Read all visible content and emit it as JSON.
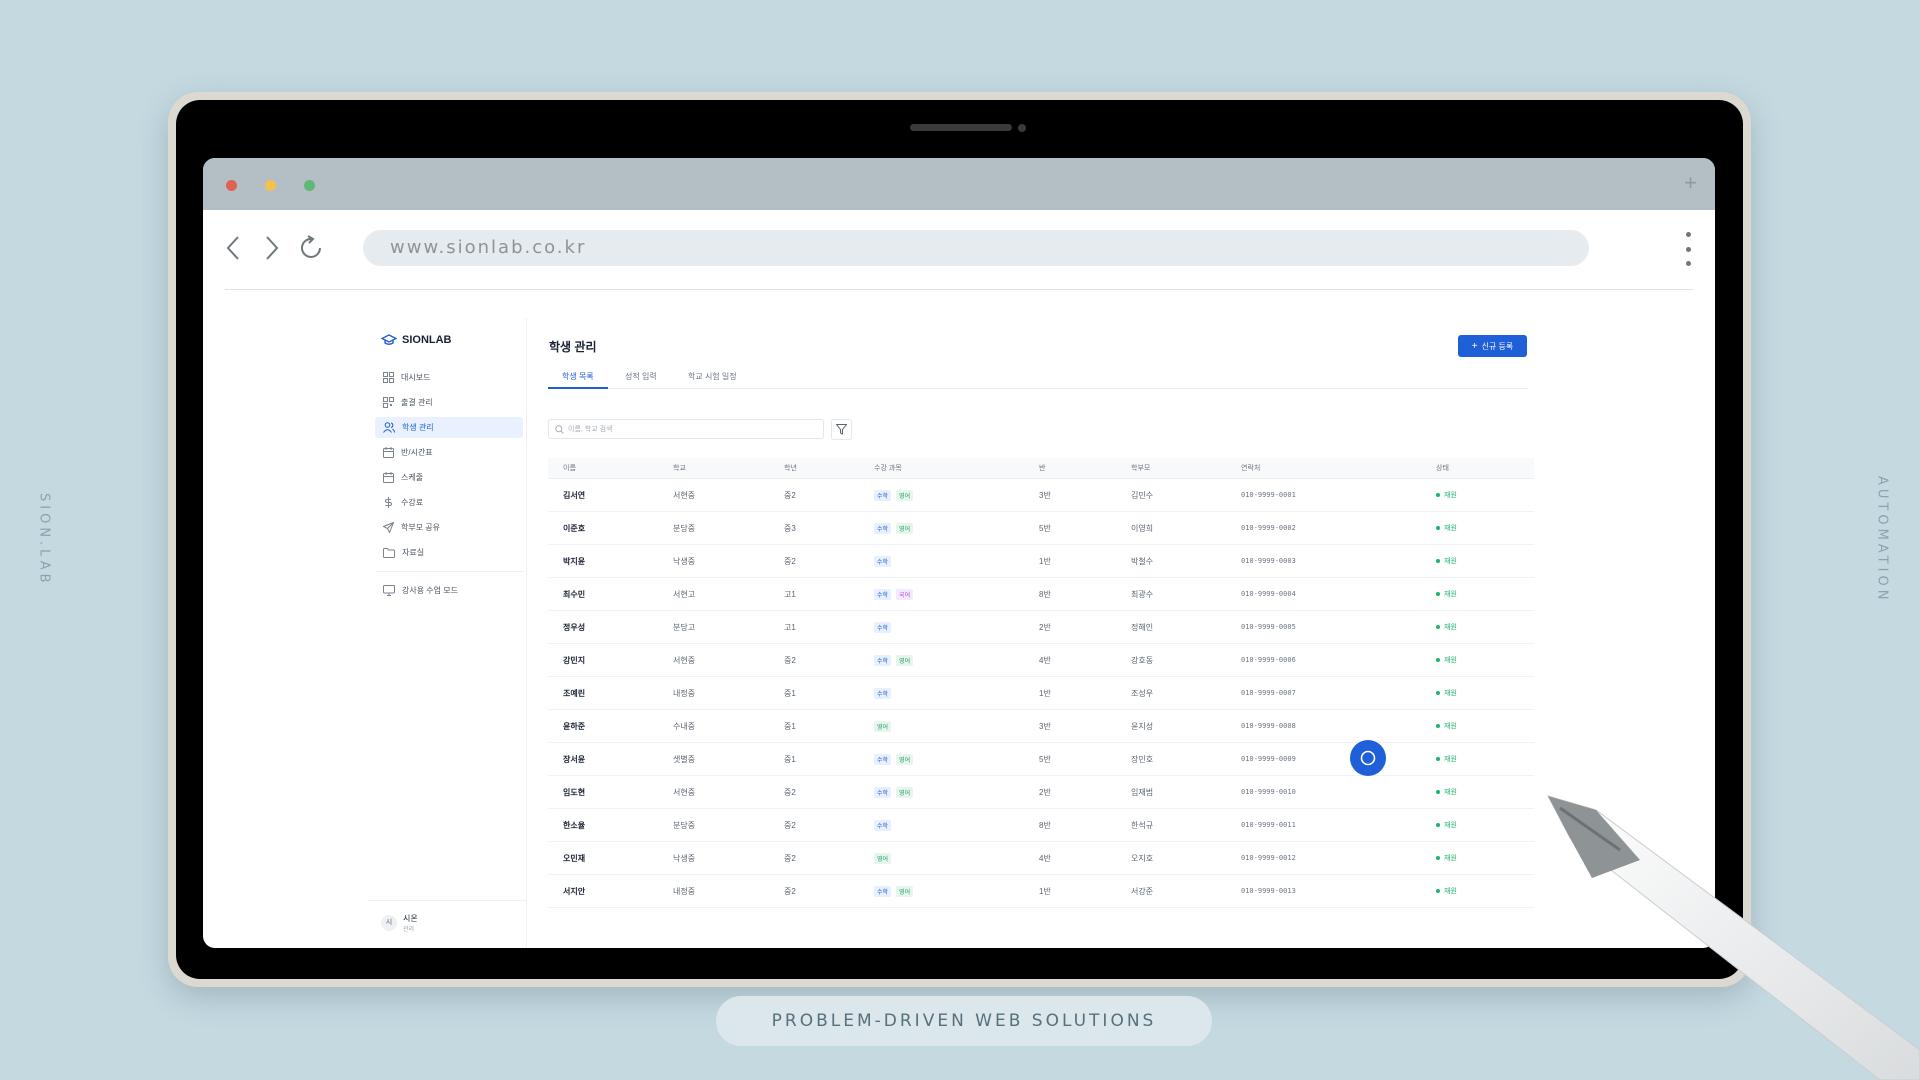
{
  "frame": {
    "left_text": "SION.LAB",
    "right_text": "AUTOMATION",
    "bottom_pill": "PROBLEM-DRIVEN WEB SOLUTIONS"
  },
  "browser": {
    "url": "www.sionlab.co.kr",
    "new_tab": "+"
  },
  "sidebar": {
    "brand": "SIONLAB",
    "items": [
      {
        "label": "대시보드",
        "icon": "dashboard-icon"
      },
      {
        "label": "출결 관리",
        "icon": "qr-icon"
      },
      {
        "label": "학생 관리",
        "icon": "users-icon"
      },
      {
        "label": "반/시간표",
        "icon": "calendar-icon"
      },
      {
        "label": "스케줄",
        "icon": "schedule-icon"
      },
      {
        "label": "수강료",
        "icon": "dollar-icon"
      },
      {
        "label": "학부모 공유",
        "icon": "send-icon"
      },
      {
        "label": "자료실",
        "icon": "folder-icon"
      }
    ],
    "extra": {
      "label": "강사용 수업 모드",
      "icon": "monitor-icon"
    },
    "user": {
      "initial": "시",
      "name": "시온",
      "role": "관리"
    }
  },
  "main": {
    "title": "학생 관리",
    "new_button": "신규 등록",
    "tabs": [
      "학생 목록",
      "성적 입력",
      "학교 시험 일정"
    ],
    "search_placeholder": "이름, 학교 검색",
    "columns": [
      "이름",
      "학교",
      "학년",
      "수강 과목",
      "반",
      "학부모",
      "연락처",
      "상태"
    ],
    "rows": [
      {
        "name": "김서연",
        "school": "서현중",
        "grade": "중2",
        "subjects": [
          "수학",
          "영어"
        ],
        "class": "3반",
        "parent": "김민수",
        "phone": "010-9999-0001",
        "status": "재원"
      },
      {
        "name": "이준호",
        "school": "분당중",
        "grade": "중3",
        "subjects": [
          "수학",
          "영어"
        ],
        "class": "5반",
        "parent": "이영희",
        "phone": "010-9999-0002",
        "status": "재원"
      },
      {
        "name": "박지윤",
        "school": "낙생중",
        "grade": "중2",
        "subjects": [
          "수학"
        ],
        "class": "1반",
        "parent": "박철수",
        "phone": "010-9999-0003",
        "status": "재원"
      },
      {
        "name": "최수민",
        "school": "서현고",
        "grade": "고1",
        "subjects": [
          "수학",
          "국어"
        ],
        "class": "8반",
        "parent": "최광수",
        "phone": "010-9999-0004",
        "status": "재원"
      },
      {
        "name": "정우성",
        "school": "분당고",
        "grade": "고1",
        "subjects": [
          "수학"
        ],
        "class": "2반",
        "parent": "정해인",
        "phone": "010-9999-0005",
        "status": "재원"
      },
      {
        "name": "강민지",
        "school": "서현중",
        "grade": "중2",
        "subjects": [
          "수학",
          "영어"
        ],
        "class": "4반",
        "parent": "강호동",
        "phone": "010-9999-0006",
        "status": "재원"
      },
      {
        "name": "조예린",
        "school": "내정중",
        "grade": "중1",
        "subjects": [
          "수학"
        ],
        "class": "1반",
        "parent": "조성우",
        "phone": "010-9999-0007",
        "status": "재원"
      },
      {
        "name": "윤하준",
        "school": "수내중",
        "grade": "중1",
        "subjects": [
          "영어"
        ],
        "class": "3반",
        "parent": "윤지성",
        "phone": "010-9999-0008",
        "status": "재원"
      },
      {
        "name": "장서윤",
        "school": "샛별중",
        "grade": "중1",
        "subjects": [
          "수학",
          "영어"
        ],
        "class": "5반",
        "parent": "장민호",
        "phone": "010-9999-0009",
        "status": "재원"
      },
      {
        "name": "임도현",
        "school": "서현중",
        "grade": "중2",
        "subjects": [
          "수학",
          "영어"
        ],
        "class": "2반",
        "parent": "임재범",
        "phone": "010-9999-0010",
        "status": "재원"
      },
      {
        "name": "한소율",
        "school": "분당중",
        "grade": "중2",
        "subjects": [
          "수학"
        ],
        "class": "8반",
        "parent": "한석규",
        "phone": "010-9999-0011",
        "status": "재원"
      },
      {
        "name": "오민재",
        "school": "낙생중",
        "grade": "중2",
        "subjects": [
          "영어"
        ],
        "class": "4반",
        "parent": "오지호",
        "phone": "010-9999-0012",
        "status": "재원"
      },
      {
        "name": "서지안",
        "school": "내정중",
        "grade": "중2",
        "subjects": [
          "수학",
          "영어"
        ],
        "class": "1반",
        "parent": "서강준",
        "phone": "010-9999-0013",
        "status": "재원"
      }
    ]
  },
  "subject_colors": {
    "수학": {
      "bg": "#e8f0fe",
      "fg": "#1f5fd8"
    },
    "영어": {
      "bg": "#e6f6ee",
      "fg": "#1a9c5c"
    },
    "국어": {
      "bg": "#f4eafd",
      "fg": "#9b4fd6"
    }
  },
  "colors": {
    "accent": "#1f5fd8",
    "status": "#1db36b"
  }
}
